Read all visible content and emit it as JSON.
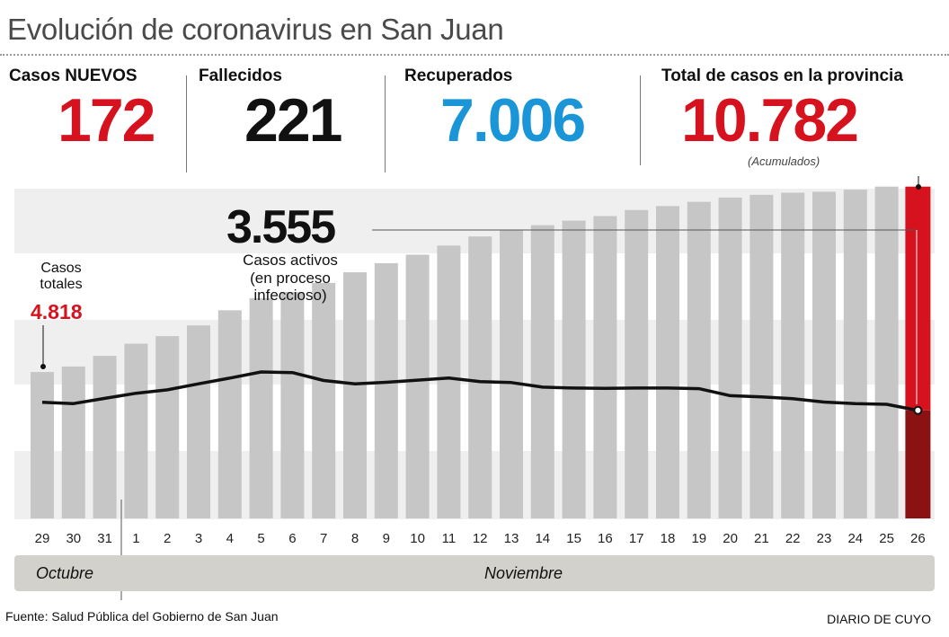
{
  "title": "Evolución de coronavirus en San Juan",
  "stats": [
    {
      "label": "Casos NUEVOS",
      "value": "172",
      "color": "#d7121f"
    },
    {
      "label": "Fallecidos",
      "value": "221",
      "color": "#111111"
    },
    {
      "label": "Recuperados",
      "value": "7.006",
      "color": "#1a96d8"
    },
    {
      "label": "Total de casos en la provincia",
      "value": "10.782",
      "color": "#d7121f",
      "note": "(Acumulados)"
    }
  ],
  "annotations": {
    "active_value": "3.555",
    "active_label_1": "Casos activos",
    "active_label_2": "(en proceso",
    "active_label_3": "infeccioso)",
    "total_label_1": "Casos",
    "total_label_2": "totales",
    "total_value": "4.818"
  },
  "months": {
    "first": "Octubre",
    "second": "Noviembre"
  },
  "footer": {
    "source": "Fuente: Salud Pública del Gobierno de San Juan",
    "brand": "DIARIO DE CUYO"
  },
  "colors": {
    "bar": "#c6c6c6",
    "highlight": "#d7121f",
    "highlight_dark": "#8a1212",
    "line": "#111111",
    "band": "#eeeeee"
  },
  "chart_data": {
    "type": "bar",
    "categories": [
      "29",
      "30",
      "31",
      "1",
      "2",
      "3",
      "4",
      "5",
      "6",
      "7",
      "8",
      "9",
      "10",
      "11",
      "12",
      "13",
      "14",
      "15",
      "16",
      "17",
      "18",
      "19",
      "20",
      "21",
      "22",
      "23",
      "24",
      "25",
      "26"
    ],
    "series": [
      {
        "name": "Casos totales",
        "values": [
          4818,
          5000,
          5350,
          5750,
          6000,
          6350,
          6850,
          7250,
          7450,
          7750,
          8100,
          8400,
          8680,
          8980,
          9280,
          9500,
          9650,
          9800,
          9950,
          10150,
          10280,
          10420,
          10560,
          10650,
          10720,
          10750,
          10820,
          10920,
          10782
        ]
      },
      {
        "name": "Casos activos",
        "values": [
          3820,
          3780,
          3950,
          4120,
          4230,
          4430,
          4620,
          4820,
          4800,
          4540,
          4430,
          4480,
          4550,
          4620,
          4500,
          4470,
          4320,
          4290,
          4280,
          4290,
          4290,
          4270,
          4040,
          4000,
          3940,
          3830,
          3780,
          3755,
          3555
        ]
      }
    ],
    "ylim": [
      0,
      11000
    ],
    "highlight_category": "26",
    "xlabel": "",
    "ylabel": ""
  }
}
